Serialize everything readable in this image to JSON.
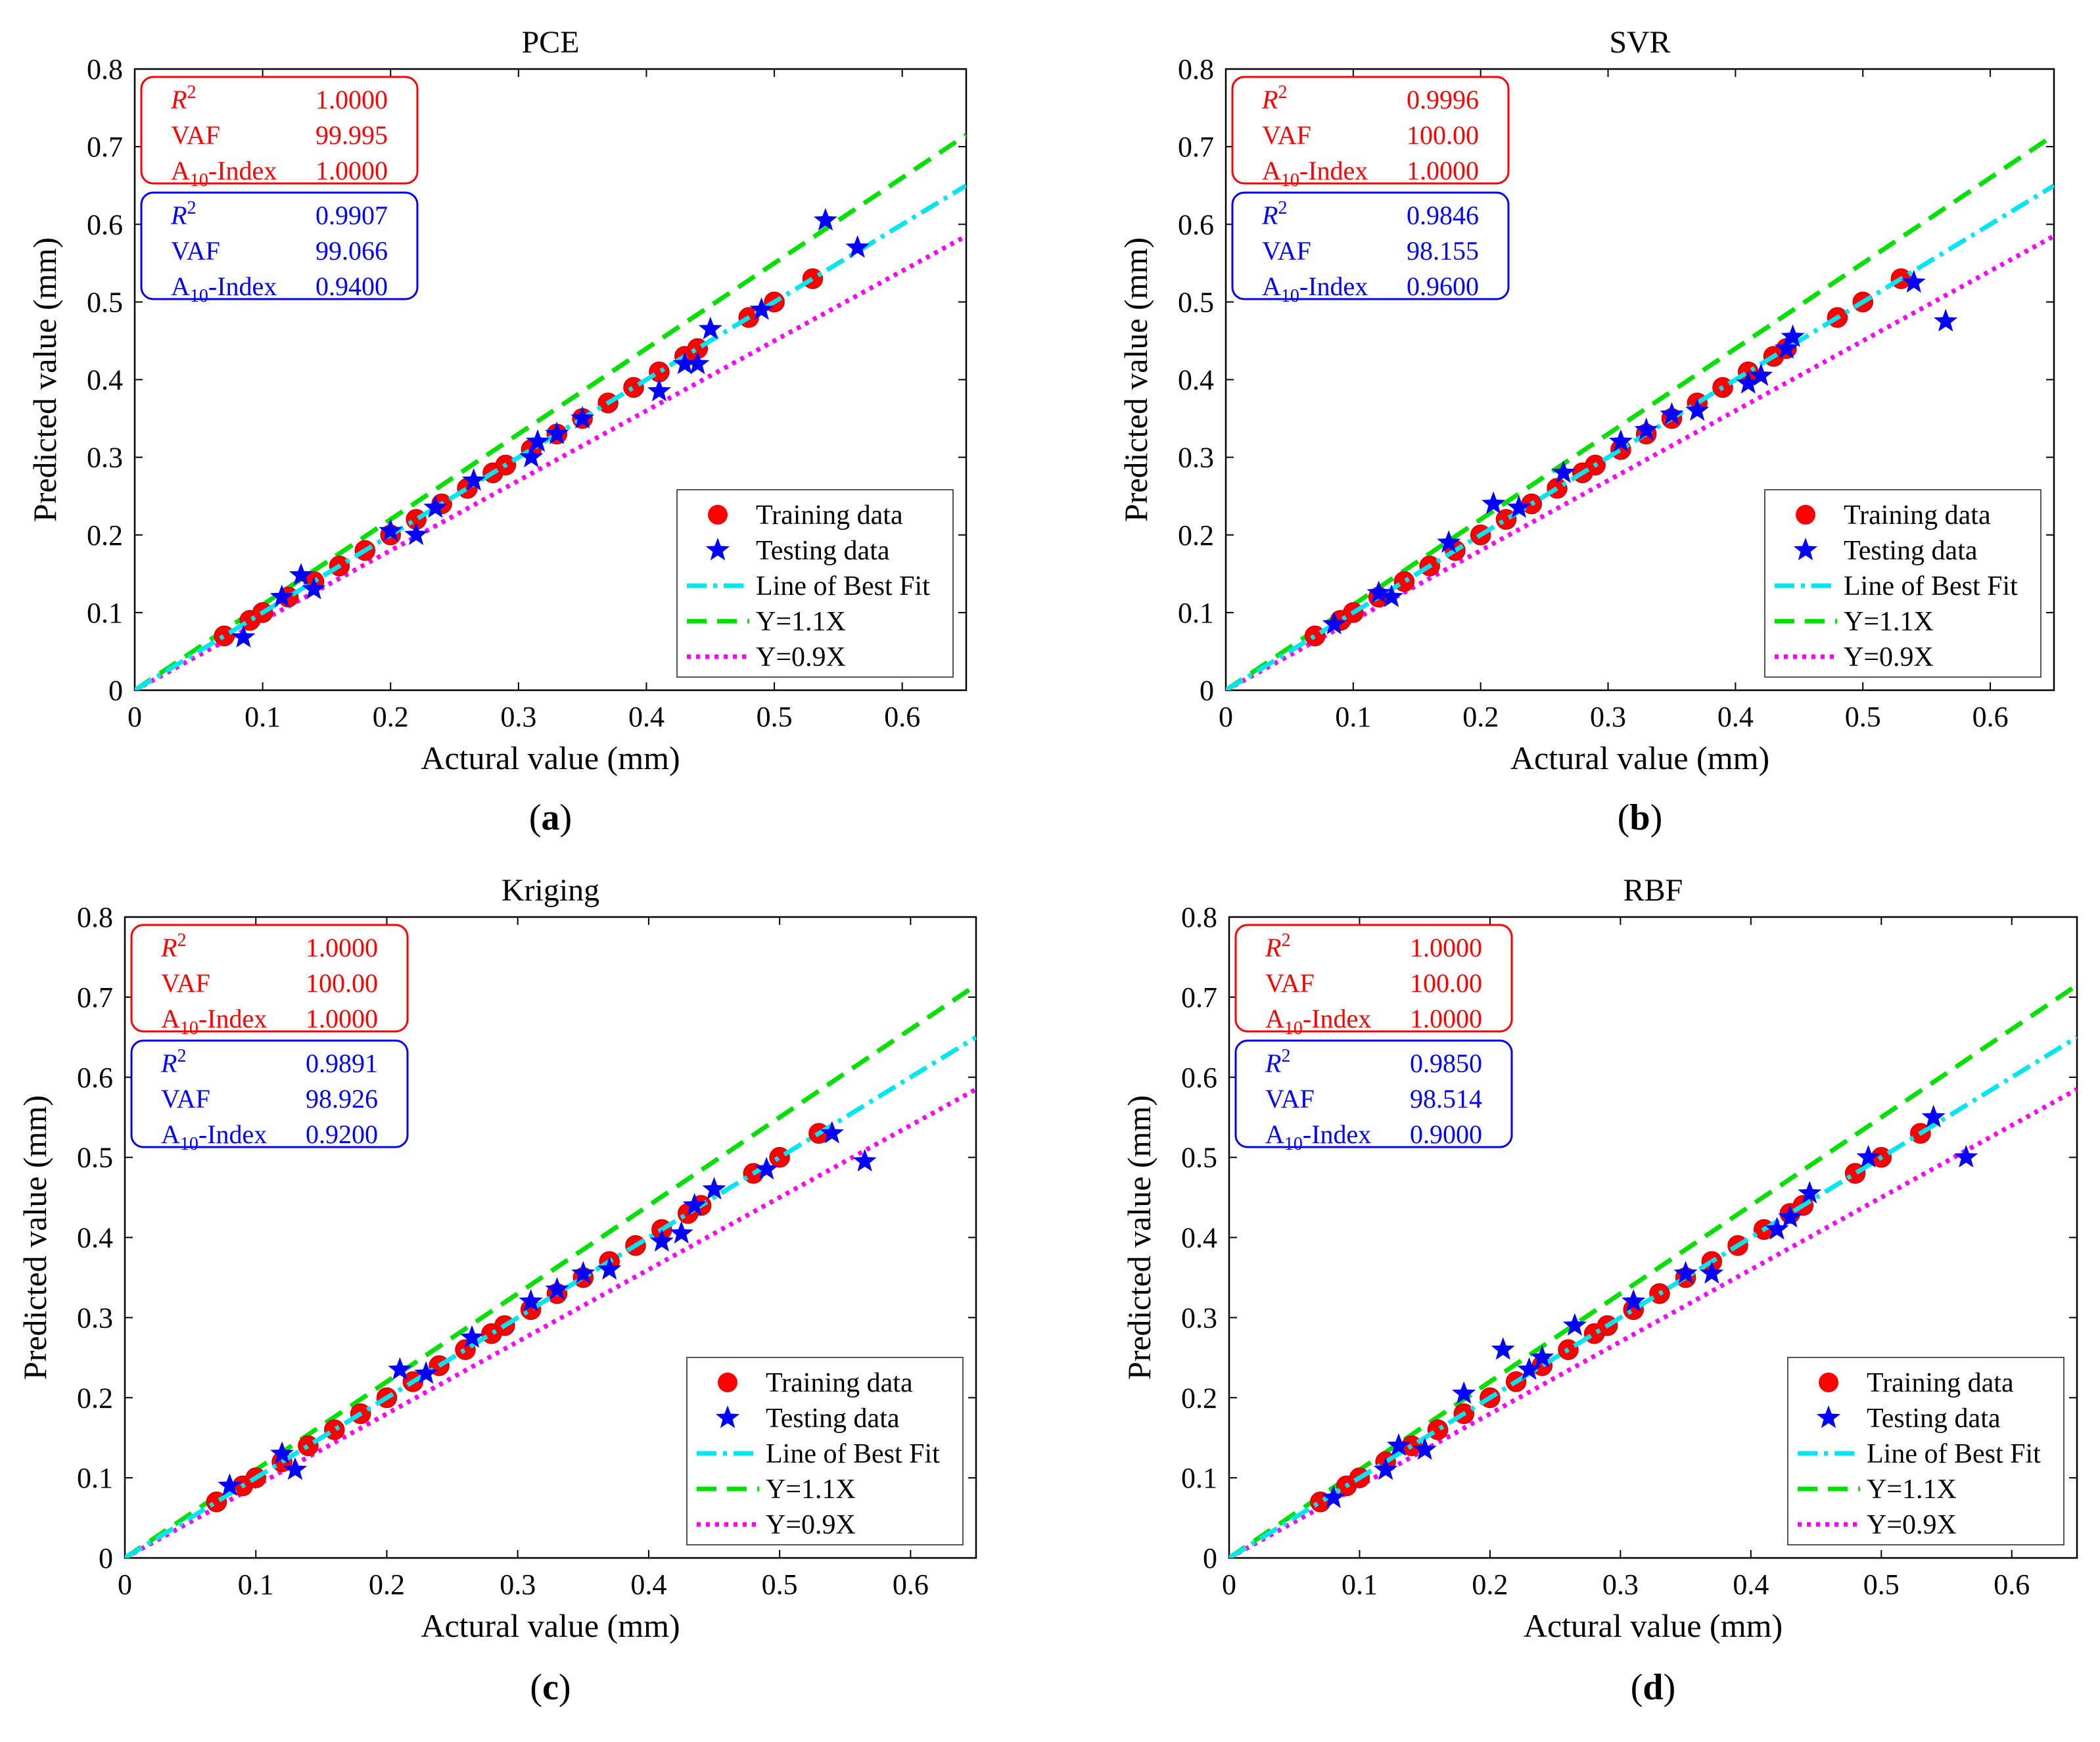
{
  "chart_data": [
    {
      "type": "scatter",
      "panel": "a",
      "caption_label": "a",
      "title": "PCE",
      "xlabel": "Actural value (mm)",
      "ylabel": "Predicted value (mm)",
      "xlim": [
        0,
        0.65
      ],
      "ylim": [
        0,
        0.8
      ],
      "xticks": [
        "0",
        "0.1",
        "0.2",
        "0.3",
        "0.4",
        "0.5",
        "0.6"
      ],
      "yticks": [
        "0",
        "0.1",
        "0.2",
        "0.3",
        "0.4",
        "0.5",
        "0.6",
        "0.7",
        "0.8"
      ],
      "training": {
        "x": [
          0.07,
          0.09,
          0.1,
          0.12,
          0.14,
          0.16,
          0.18,
          0.2,
          0.22,
          0.24,
          0.26,
          0.28,
          0.29,
          0.31,
          0.33,
          0.35,
          0.37,
          0.39,
          0.41,
          0.43,
          0.44,
          0.48,
          0.5,
          0.53
        ],
        "y": [
          0.07,
          0.09,
          0.1,
          0.12,
          0.14,
          0.16,
          0.18,
          0.2,
          0.22,
          0.24,
          0.26,
          0.28,
          0.29,
          0.31,
          0.33,
          0.35,
          0.37,
          0.39,
          0.41,
          0.43,
          0.44,
          0.48,
          0.5,
          0.53
        ]
      },
      "testing": {
        "x": [
          0.085,
          0.115,
          0.13,
          0.14,
          0.2,
          0.22,
          0.235,
          0.265,
          0.31,
          0.315,
          0.33,
          0.35,
          0.41,
          0.43,
          0.44,
          0.45,
          0.49,
          0.54,
          0.565
        ],
        "y": [
          0.068,
          0.12,
          0.148,
          0.13,
          0.205,
          0.2,
          0.235,
          0.27,
          0.3,
          0.32,
          0.33,
          0.35,
          0.385,
          0.42,
          0.42,
          0.465,
          0.49,
          0.605,
          0.57
        ]
      },
      "fit_slope": 1.0,
      "stats_train": {
        "r2_label": "R",
        "r2_sup": "2",
        "r2": "1.0000",
        "vaf_label": "VAF",
        "vaf": "99.995",
        "a10_label": "A",
        "a10_sub": "10",
        "a10_suffix": "-Index",
        "a10": "1.0000"
      },
      "stats_test": {
        "r2_label": "R",
        "r2_sup": "2",
        "r2": "0.9907",
        "vaf_label": "VAF",
        "vaf": "99.066",
        "a10_label": "A",
        "a10_sub": "10",
        "a10_suffix": "-Index",
        "a10": "0.9400"
      },
      "legend": [
        "Training data",
        "Testing data",
        "Line of Best Fit",
        "Y=1.1X",
        "Y=0.9X"
      ]
    },
    {
      "type": "scatter",
      "panel": "b",
      "caption_label": "b",
      "title": "SVR",
      "xlabel": "Actural value (mm)",
      "ylabel": "Predicted value (mm)",
      "xlim": [
        0,
        0.65
      ],
      "ylim": [
        0,
        0.8
      ],
      "xticks": [
        "0",
        "0.1",
        "0.2",
        "0.3",
        "0.4",
        "0.5",
        "0.6"
      ],
      "yticks": [
        "0",
        "0.1",
        "0.2",
        "0.3",
        "0.4",
        "0.5",
        "0.6",
        "0.7",
        "0.8"
      ],
      "training": {
        "x": [
          0.07,
          0.09,
          0.1,
          0.12,
          0.14,
          0.16,
          0.18,
          0.2,
          0.22,
          0.24,
          0.26,
          0.28,
          0.29,
          0.31,
          0.33,
          0.35,
          0.37,
          0.39,
          0.41,
          0.43,
          0.44,
          0.48,
          0.5,
          0.53
        ],
        "y": [
          0.07,
          0.09,
          0.1,
          0.12,
          0.14,
          0.16,
          0.18,
          0.2,
          0.22,
          0.24,
          0.26,
          0.28,
          0.29,
          0.31,
          0.33,
          0.35,
          0.37,
          0.39,
          0.41,
          0.43,
          0.44,
          0.48,
          0.5,
          0.53
        ]
      },
      "testing": {
        "x": [
          0.085,
          0.12,
          0.13,
          0.175,
          0.21,
          0.23,
          0.265,
          0.31,
          0.33,
          0.35,
          0.37,
          0.41,
          0.42,
          0.44,
          0.445,
          0.54,
          0.565
        ],
        "y": [
          0.085,
          0.125,
          0.12,
          0.19,
          0.24,
          0.235,
          0.28,
          0.32,
          0.335,
          0.355,
          0.36,
          0.395,
          0.405,
          0.44,
          0.455,
          0.525,
          0.475
        ]
      },
      "fit_slope": 1.0,
      "stats_train": {
        "r2_label": "R",
        "r2_sup": "2",
        "r2": "0.9996",
        "vaf_label": "VAF",
        "vaf": "100.00",
        "a10_label": "A",
        "a10_sub": "10",
        "a10_suffix": "-Index",
        "a10": "1.0000"
      },
      "stats_test": {
        "r2_label": "R",
        "r2_sup": "2",
        "r2": "0.9846",
        "vaf_label": "VAF",
        "vaf": "98.155",
        "a10_label": "A",
        "a10_sub": "10",
        "a10_suffix": "-Index",
        "a10": "0.9600"
      },
      "legend": [
        "Training data",
        "Testing data",
        "Line of Best Fit",
        "Y=1.1X",
        "Y=0.9X"
      ]
    },
    {
      "type": "scatter",
      "panel": "c",
      "caption_label": "c",
      "title": "Kriging",
      "xlabel": "Actural value (mm)",
      "ylabel": "Predicted value (mm)",
      "xlim": [
        0,
        0.65
      ],
      "ylim": [
        0,
        0.8
      ],
      "xticks": [
        "0",
        "0.1",
        "0.2",
        "0.3",
        "0.4",
        "0.5",
        "0.6"
      ],
      "yticks": [
        "0",
        "0.1",
        "0.2",
        "0.3",
        "0.4",
        "0.5",
        "0.6",
        "0.7",
        "0.8"
      ],
      "training": {
        "x": [
          0.07,
          0.09,
          0.1,
          0.12,
          0.14,
          0.16,
          0.18,
          0.2,
          0.22,
          0.24,
          0.26,
          0.28,
          0.29,
          0.31,
          0.33,
          0.35,
          0.37,
          0.39,
          0.41,
          0.43,
          0.44,
          0.48,
          0.5,
          0.53
        ],
        "y": [
          0.07,
          0.09,
          0.1,
          0.12,
          0.14,
          0.16,
          0.18,
          0.2,
          0.22,
          0.24,
          0.26,
          0.28,
          0.29,
          0.31,
          0.33,
          0.35,
          0.37,
          0.39,
          0.41,
          0.43,
          0.44,
          0.48,
          0.5,
          0.53
        ]
      },
      "testing": {
        "x": [
          0.08,
          0.12,
          0.13,
          0.21,
          0.23,
          0.265,
          0.31,
          0.33,
          0.35,
          0.37,
          0.41,
          0.425,
          0.435,
          0.45,
          0.49,
          0.54,
          0.565
        ],
        "y": [
          0.09,
          0.13,
          0.11,
          0.235,
          0.23,
          0.275,
          0.32,
          0.335,
          0.355,
          0.36,
          0.395,
          0.405,
          0.44,
          0.46,
          0.485,
          0.53,
          0.495
        ]
      },
      "fit_slope": 1.0,
      "stats_train": {
        "r2_label": "R",
        "r2_sup": "2",
        "r2": "1.0000",
        "vaf_label": "VAF",
        "vaf": "100.00",
        "a10_label": "A",
        "a10_sub": "10",
        "a10_suffix": "-Index",
        "a10": "1.0000"
      },
      "stats_test": {
        "r2_label": "R",
        "r2_sup": "2",
        "r2": "0.9891",
        "vaf_label": "VAF",
        "vaf": "98.926",
        "a10_label": "A",
        "a10_sub": "10",
        "a10_suffix": "-Index",
        "a10": "0.9200"
      },
      "legend": [
        "Training data",
        "Testing data",
        "Line of Best Fit",
        "Y=1.1X",
        "Y=0.9X"
      ]
    },
    {
      "type": "scatter",
      "panel": "d",
      "caption_label": "d",
      "title": "RBF",
      "xlabel": "Actural value (mm)",
      "ylabel": "Predicted value (mm)",
      "xlim": [
        0,
        0.65
      ],
      "ylim": [
        0,
        0.8
      ],
      "xticks": [
        "0",
        "0.1",
        "0.2",
        "0.3",
        "0.4",
        "0.5",
        "0.6"
      ],
      "yticks": [
        "0",
        "0.1",
        "0.2",
        "0.3",
        "0.4",
        "0.5",
        "0.6",
        "0.7",
        "0.8"
      ],
      "training": {
        "x": [
          0.07,
          0.09,
          0.1,
          0.12,
          0.14,
          0.16,
          0.18,
          0.2,
          0.22,
          0.24,
          0.26,
          0.28,
          0.29,
          0.31,
          0.33,
          0.35,
          0.37,
          0.39,
          0.41,
          0.43,
          0.44,
          0.48,
          0.5,
          0.53
        ],
        "y": [
          0.07,
          0.09,
          0.1,
          0.12,
          0.14,
          0.16,
          0.18,
          0.2,
          0.22,
          0.24,
          0.26,
          0.28,
          0.29,
          0.31,
          0.33,
          0.35,
          0.37,
          0.39,
          0.41,
          0.43,
          0.44,
          0.48,
          0.5,
          0.53
        ]
      },
      "testing": {
        "x": [
          0.08,
          0.12,
          0.13,
          0.15,
          0.18,
          0.21,
          0.23,
          0.24,
          0.265,
          0.31,
          0.35,
          0.37,
          0.42,
          0.43,
          0.445,
          0.49,
          0.54,
          0.565
        ],
        "y": [
          0.075,
          0.11,
          0.14,
          0.135,
          0.205,
          0.26,
          0.235,
          0.25,
          0.29,
          0.32,
          0.355,
          0.355,
          0.41,
          0.425,
          0.455,
          0.5,
          0.55,
          0.5
        ]
      },
      "fit_slope": 1.0,
      "stats_train": {
        "r2_label": "R",
        "r2_sup": "2",
        "r2": "1.0000",
        "vaf_label": "VAF",
        "vaf": "100.00",
        "a10_label": "A",
        "a10_sub": "10",
        "a10_suffix": "-Index",
        "a10": "1.0000"
      },
      "stats_test": {
        "r2_label": "R",
        "r2_sup": "2",
        "r2": "0.9850",
        "vaf_label": "VAF",
        "vaf": "98.514",
        "a10_label": "A",
        "a10_sub": "10",
        "a10_suffix": "-Index",
        "a10": "0.9000"
      },
      "legend": [
        "Training data",
        "Testing data",
        "Line of Best Fit",
        "Y=1.1X",
        "Y=0.9X"
      ]
    }
  ],
  "colors": {
    "training": "#ff0000",
    "testing": "#0000ff",
    "fit": "#00e5ee",
    "upper": "#00e000",
    "lower": "#ff00ff",
    "train_box": "#ff0000",
    "test_box": "#0000ff"
  }
}
